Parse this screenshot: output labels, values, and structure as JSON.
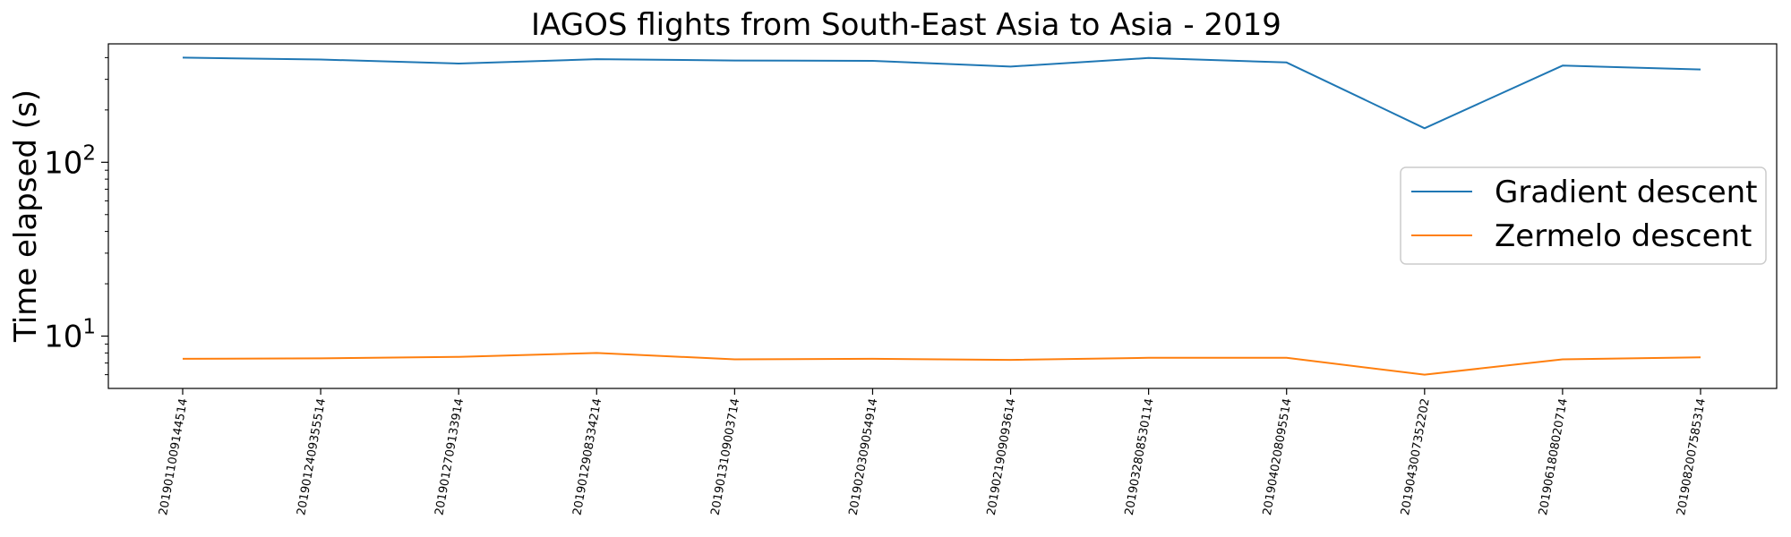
{
  "chart_data": {
    "type": "line",
    "title": "IAGOS flights from South-East Asia to Asia - 2019",
    "xlabel": "",
    "ylabel": "Time elapsed (s)",
    "yscale": "log",
    "ylim": [
      5,
      480
    ],
    "yticks": [
      {
        "base": "10",
        "exp": "1",
        "value": 10
      },
      {
        "base": "10",
        "exp": "2",
        "value": 100
      }
    ],
    "grid": false,
    "legend_position": "center-right",
    "categories": [
      "2019011009144514",
      "2019012409355514",
      "2019012709133914",
      "2019012908334214",
      "2019013109003714",
      "2019020309054914",
      "2019021909093614",
      "2019032808530114",
      "2019040208095514",
      "2019043007352202",
      "2019061808020714",
      "2019082007585314"
    ],
    "series": [
      {
        "name": "Gradient descent",
        "color": "#1f77b4",
        "values": [
          400,
          390,
          370,
          392,
          385,
          383,
          355,
          398,
          375,
          157,
          360,
          342
        ]
      },
      {
        "name": "Zermelo descent",
        "color": "#ff7f0e",
        "values": [
          7.4,
          7.45,
          7.6,
          8.0,
          7.35,
          7.4,
          7.3,
          7.5,
          7.5,
          6.0,
          7.35,
          7.55
        ]
      }
    ]
  }
}
